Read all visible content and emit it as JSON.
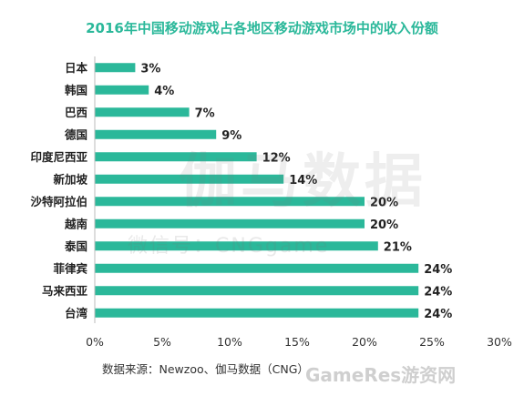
{
  "chart_data": {
    "type": "bar",
    "orientation": "horizontal",
    "title": "2016年中国移动游戏占各地区移动游戏市场中的收入份额",
    "categories": [
      "日本",
      "韩国",
      "巴西",
      "德国",
      "印度尼西亚",
      "新加坡",
      "沙特阿拉伯",
      "越南",
      "泰国",
      "菲律宾",
      "马来西亚",
      "台湾"
    ],
    "values": [
      3,
      4,
      7,
      9,
      12,
      14,
      20,
      20,
      21,
      24,
      24,
      24
    ],
    "value_labels": [
      "3%",
      "4%",
      "7%",
      "9%",
      "12%",
      "14%",
      "20%",
      "20%",
      "21%",
      "24%",
      "24%",
      "24%"
    ],
    "xlim": [
      0,
      30
    ],
    "xticks": [
      0,
      5,
      10,
      15,
      20,
      25,
      30
    ],
    "xtick_labels": [
      "0%",
      "5%",
      "10%",
      "15%",
      "20%",
      "25%",
      "30%"
    ],
    "grid": false,
    "bar_color": "#2bb89a",
    "title_color": "#2bb89a",
    "source": "数据来源：Newzoo、伽马数据（CNG）"
  },
  "watermarks": {
    "main": "伽马数据",
    "sub": "微信号：CNGgame",
    "corner": "GameRes游资网"
  }
}
